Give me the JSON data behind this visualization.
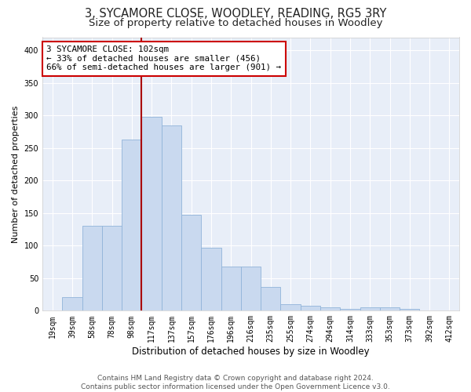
{
  "title": "3, SYCAMORE CLOSE, WOODLEY, READING, RG5 3RY",
  "subtitle": "Size of property relative to detached houses in Woodley",
  "xlabel": "Distribution of detached houses by size in Woodley",
  "ylabel": "Number of detached properties",
  "bar_labels": [
    "19sqm",
    "39sqm",
    "58sqm",
    "78sqm",
    "98sqm",
    "117sqm",
    "137sqm",
    "157sqm",
    "176sqm",
    "196sqm",
    "216sqm",
    "235sqm",
    "255sqm",
    "274sqm",
    "294sqm",
    "314sqm",
    "333sqm",
    "353sqm",
    "373sqm",
    "392sqm",
    "412sqm"
  ],
  "bar_values": [
    1,
    21,
    130,
    130,
    263,
    298,
    285,
    147,
    97,
    68,
    68,
    37,
    10,
    8,
    5,
    3,
    5,
    5,
    3,
    1,
    1
  ],
  "bar_color": "#c9d9ef",
  "bar_edge_color": "#91b4d9",
  "vline_color": "#aa0000",
  "annotation_line1": "3 SYCAMORE CLOSE: 102sqm",
  "annotation_line2": "← 33% of detached houses are smaller (456)",
  "annotation_line3": "66% of semi-detached houses are larger (901) →",
  "annotation_box_facecolor": "#ffffff",
  "annotation_box_edgecolor": "#cc0000",
  "ylim_max": 420,
  "yticks": [
    0,
    50,
    100,
    150,
    200,
    250,
    300,
    350,
    400
  ],
  "plot_bg": "#e8eef8",
  "grid_color": "#ffffff",
  "fig_bg": "#ffffff",
  "footer_line1": "Contains HM Land Registry data © Crown copyright and database right 2024.",
  "footer_line2": "Contains public sector information licensed under the Open Government Licence v3.0.",
  "title_fontsize": 10.5,
  "subtitle_fontsize": 9.5,
  "xlabel_fontsize": 8.5,
  "ylabel_fontsize": 8,
  "annot_fontsize": 7.8,
  "tick_fontsize": 7,
  "footer_fontsize": 6.5,
  "vline_bar_index": 4.5
}
